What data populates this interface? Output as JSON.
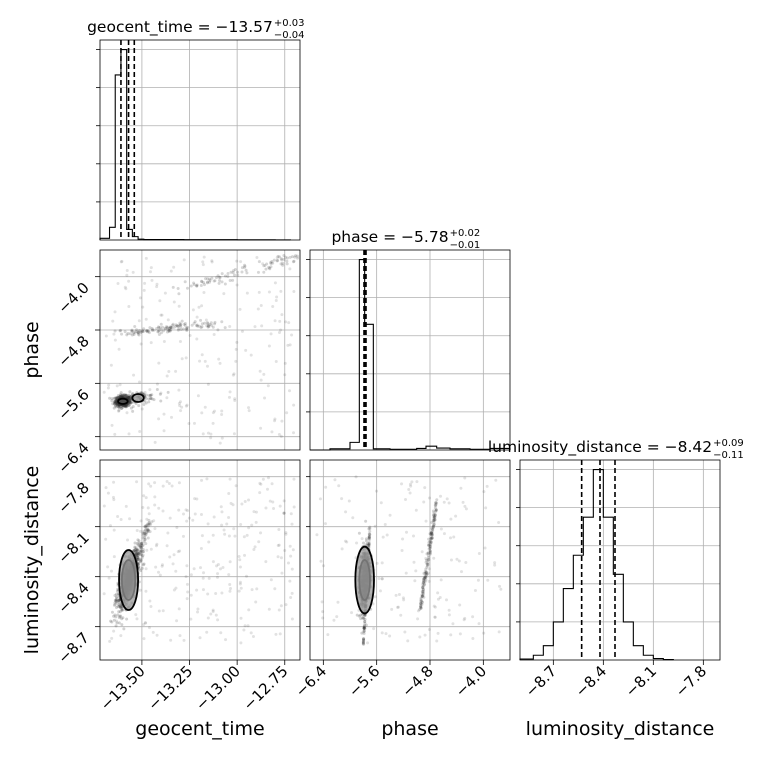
{
  "chart_data": {
    "type": "corner",
    "parameters": [
      "geocent_time",
      "phase",
      "luminosity_distance"
    ],
    "titles": [
      {
        "param": "geocent_time",
        "prefix": "geocent_time = ",
        "median": "−13.57",
        "plus": "+0.03",
        "minus": "−0.04"
      },
      {
        "param": "phase",
        "prefix": "phase = ",
        "median": "−5.78",
        "plus": "+0.02",
        "minus": "−0.01"
      },
      {
        "param": "luminosity_distance",
        "prefix": "luminosity_distance = ",
        "median": "−8.42",
        "plus": "+0.09",
        "minus": "−0.11"
      }
    ],
    "axes": {
      "geocent_time": {
        "range": [
          -13.72,
          -12.67
        ],
        "ticks": [
          -13.5,
          -13.25,
          -13.0,
          -12.75
        ],
        "tick_labels": [
          "−13.50",
          "−13.25",
          "−13.00",
          "−12.75"
        ],
        "label": "geocent_time"
      },
      "phase": {
        "range": [
          -6.6,
          -3.6
        ],
        "ticks": [
          -6.4,
          -5.6,
          -4.8,
          -4.0
        ],
        "tick_labels": [
          "−6.4",
          "−5.6",
          "−4.8",
          "−4.0"
        ],
        "label": "phase"
      },
      "luminosity_distance": {
        "range": [
          -8.9,
          -7.7
        ],
        "ticks": [
          -8.7,
          -8.4,
          -8.1,
          -7.8
        ],
        "tick_labels": [
          "−8.7",
          "−8.4",
          "−8.1",
          "−7.8"
        ],
        "label": "luminosity_distance"
      }
    },
    "histograms": {
      "geocent_time": {
        "bin_edges": [
          -13.72,
          -13.67,
          -13.64,
          -13.61,
          -13.58,
          -13.55,
          -13.52,
          -13.49,
          -13.46,
          -13.41,
          -13.35,
          -13.28,
          -13.0,
          -12.8,
          -12.72
        ],
        "counts": [
          0.4,
          3.0,
          39.0,
          45.0,
          2.5,
          0.8,
          0.2,
          0.1,
          0.1,
          0.1,
          0.1,
          0.08,
          0.05,
          0.03
        ],
        "quantiles": [
          -13.61,
          -13.57,
          -13.54
        ]
      },
      "phase": {
        "bin_edges": [
          -6.6,
          -6.3,
          -6.0,
          -5.86,
          -5.78,
          -5.65,
          -5.4,
          -5.0,
          -4.86,
          -4.7,
          -4.5,
          -4.2,
          -3.9,
          -3.6
        ],
        "counts": [
          0.0,
          0.3,
          2.0,
          50.0,
          33.0,
          0.3,
          0.2,
          0.4,
          1.0,
          0.5,
          0.3,
          0.2,
          0.4
        ],
        "quantiles": [
          -5.79,
          -5.78,
          -5.76
        ]
      },
      "luminosity_distance": {
        "bin_edges": [
          -8.9,
          -8.82,
          -8.76,
          -8.7,
          -8.64,
          -8.58,
          -8.52,
          -8.46,
          -8.4,
          -8.34,
          -8.28,
          -8.22,
          -8.16,
          -8.1,
          -8.04,
          -7.98
        ],
        "counts": [
          0.2,
          1.0,
          3.0,
          8.0,
          15.0,
          22.0,
          30.0,
          40.0,
          30.0,
          18.0,
          8.0,
          3.0,
          1.0,
          0.3,
          0.1
        ],
        "quantiles": [
          -8.53,
          -8.42,
          -8.33
        ]
      }
    },
    "joint": [
      {
        "x": "geocent_time",
        "y": "phase",
        "clusters": [
          {
            "cx": -13.6,
            "cy": -5.87,
            "sx": 0.02,
            "sy": 0.04,
            "n": 500,
            "rho": 0.0
          },
          {
            "cx": -13.52,
            "cy": -5.82,
            "sx": 0.05,
            "sy": 0.05,
            "n": 80,
            "rho": 0.3
          },
          {
            "trend": true,
            "x0": -13.6,
            "y0": -4.85,
            "x1": -13.15,
            "y1": -4.7,
            "spread": 0.06,
            "n": 120
          },
          {
            "trend": true,
            "x0": -13.3,
            "y0": -4.2,
            "x1": -12.7,
            "y1": -3.7,
            "spread": 0.08,
            "n": 90
          },
          {
            "uniform": true,
            "x0": -13.7,
            "x1": -12.7,
            "y0": -6.5,
            "y1": -3.7,
            "n": 200
          }
        ],
        "contours": [
          {
            "cx": -13.6,
            "cy": -5.87,
            "rx": 0.025,
            "ry": 0.04
          },
          {
            "cx": -13.52,
            "cy": -5.82,
            "rx": 0.03,
            "ry": 0.06
          }
        ]
      },
      {
        "x": "geocent_time",
        "y": "luminosity_distance",
        "clusters": [
          {
            "cx": -13.57,
            "cy": -8.42,
            "sx": 0.03,
            "sy": 0.09,
            "n": 700,
            "rho": 0.7
          },
          {
            "trend": true,
            "x0": -13.62,
            "y0": -8.55,
            "x1": -13.45,
            "y1": -8.05,
            "spread": 0.05,
            "n": 150
          },
          {
            "uniform": true,
            "x0": -13.7,
            "x1": -12.7,
            "y0": -8.8,
            "y1": -7.8,
            "n": 260
          }
        ],
        "contours": [
          {
            "cx": -13.57,
            "cy": -8.42,
            "rx": 0.035,
            "ry": 0.12
          },
          {
            "cx": -13.57,
            "cy": -8.42,
            "rx": 0.05,
            "ry": 0.18
          }
        ]
      },
      {
        "x": "phase",
        "y": "luminosity_distance",
        "clusters": [
          {
            "cx": -5.78,
            "cy": -8.42,
            "sx": 0.04,
            "sy": 0.1,
            "n": 600,
            "rho": 0.3
          },
          {
            "trend": true,
            "x0": -5.8,
            "y0": -8.8,
            "x1": -5.7,
            "y1": -8.1,
            "spread": 0.03,
            "n": 120
          },
          {
            "trend": true,
            "x0": -4.95,
            "y0": -8.6,
            "x1": -4.7,
            "y1": -7.95,
            "spread": 0.05,
            "n": 160
          },
          {
            "uniform": true,
            "x0": -6.5,
            "x1": -3.7,
            "y0": -8.8,
            "y1": -7.8,
            "n": 160
          }
        ],
        "contours": [
          {
            "cx": -5.78,
            "cy": -8.42,
            "rx": 0.08,
            "ry": 0.12
          },
          {
            "cx": -5.78,
            "cy": -8.42,
            "rx": 0.14,
            "ry": 0.2
          }
        ]
      }
    ]
  }
}
